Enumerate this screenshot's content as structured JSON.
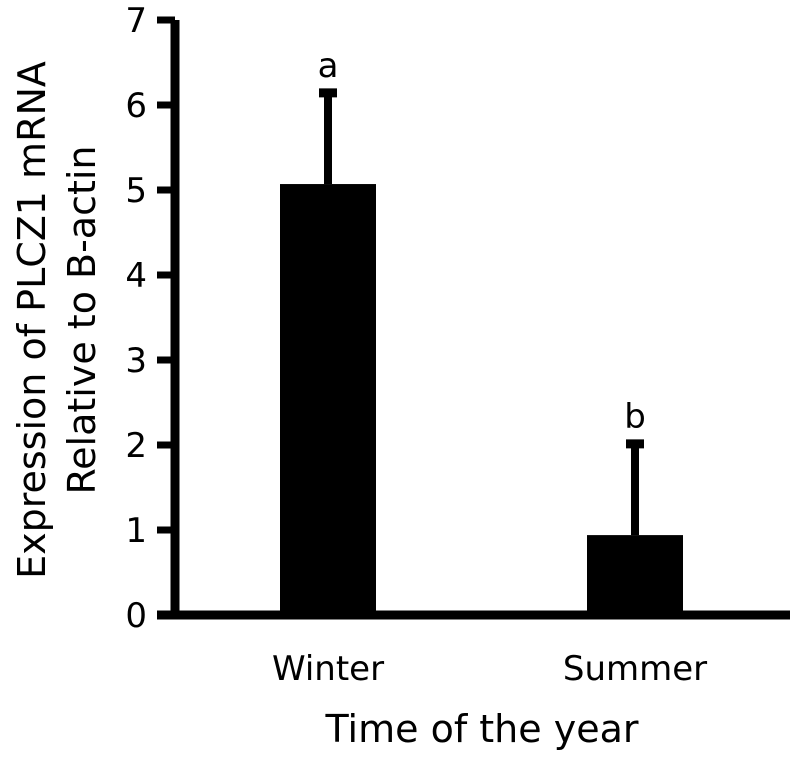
{
  "chart_data": {
    "type": "bar",
    "categories": [
      "Winter",
      "Summer"
    ],
    "values": [
      5.07,
      0.94
    ],
    "errors": [
      1.12,
      1.12
    ],
    "significance": [
      "a",
      "b"
    ],
    "xlabel": "Time of the year",
    "ylabel_lines": [
      "Expression of PLCZ1 mRNA",
      "Relative to B-actin"
    ],
    "ylim": [
      0,
      7
    ],
    "yticks": [
      0,
      1,
      2,
      3,
      4,
      5,
      6,
      7
    ],
    "bar_color": "#000000",
    "grid": false
  }
}
